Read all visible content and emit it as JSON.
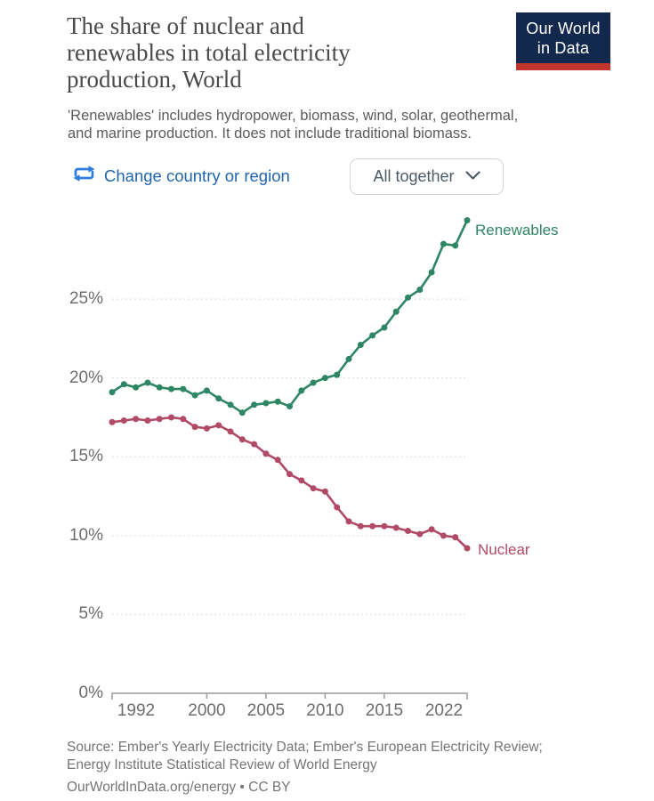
{
  "header": {
    "title_lines": [
      "The share of nuclear and",
      "renewables in total electricity",
      "production, World"
    ],
    "subtitle_lines": [
      "'Renewables' includes hydropower, biomass, wind, solar, geothermal,",
      "and marine production. It does not include traditional biomass."
    ],
    "logo": {
      "line1": "Our World",
      "line2": "in Data"
    }
  },
  "controls": {
    "change_entity_label": "Change country or region",
    "entity_dropdown_value": "All together"
  },
  "chart_data": {
    "type": "line",
    "title": "The share of nuclear and renewables in total electricity production, World",
    "x": [
      1992,
      1993,
      1994,
      1995,
      1996,
      1997,
      1998,
      1999,
      2000,
      2001,
      2002,
      2003,
      2004,
      2005,
      2006,
      2007,
      2008,
      2009,
      2010,
      2011,
      2012,
      2013,
      2014,
      2015,
      2016,
      2017,
      2018,
      2019,
      2020,
      2021,
      2022
    ],
    "series": [
      {
        "name": "Renewables",
        "color": "#2F8665",
        "values": [
          19.1,
          19.6,
          19.4,
          19.7,
          19.4,
          19.3,
          19.3,
          18.9,
          19.2,
          18.7,
          18.3,
          17.8,
          18.3,
          18.4,
          18.5,
          18.2,
          19.2,
          19.7,
          20.0,
          20.2,
          21.2,
          22.1,
          22.7,
          23.2,
          24.2,
          25.1,
          25.6,
          26.7,
          28.5,
          28.4,
          30.0
        ]
      },
      {
        "name": "Nuclear",
        "color": "#B14A67",
        "values": [
          17.2,
          17.3,
          17.4,
          17.3,
          17.4,
          17.5,
          17.4,
          16.9,
          16.8,
          17.0,
          16.6,
          16.1,
          15.8,
          15.2,
          14.8,
          13.9,
          13.5,
          13.0,
          12.8,
          11.8,
          10.9,
          10.6,
          10.6,
          10.6,
          10.5,
          10.3,
          10.1,
          10.4,
          10.0,
          9.9,
          9.2
        ]
      }
    ],
    "xticks": [
      1992,
      2000,
      2005,
      2010,
      2015,
      2022
    ],
    "yticks": [
      0,
      5,
      10,
      15,
      20,
      25
    ],
    "ytick_suffix": "%",
    "xlim": [
      1992,
      2022
    ],
    "ylim": [
      0,
      30.5
    ],
    "grid": "horizontal dashed",
    "legend_position": "line-end labels"
  },
  "footer": {
    "source_lines": [
      "Source: Ember's Yearly Electricity Data; Ember's European Electricity Review;",
      "Energy Institute Statistical Review of World Energy"
    ],
    "attribution": "OurWorldInData.org/energy • CC BY"
  },
  "colors": {
    "link_blue": "#2166AC",
    "icon_blue": "#2D7DE0",
    "logo_navy": "#12294D",
    "logo_red": "#C0362C",
    "grid_gray": "#DCDCDC",
    "axis_gray": "#9A9A9A",
    "renewables_green": "#2F8665",
    "nuclear_red": "#B14A67"
  }
}
